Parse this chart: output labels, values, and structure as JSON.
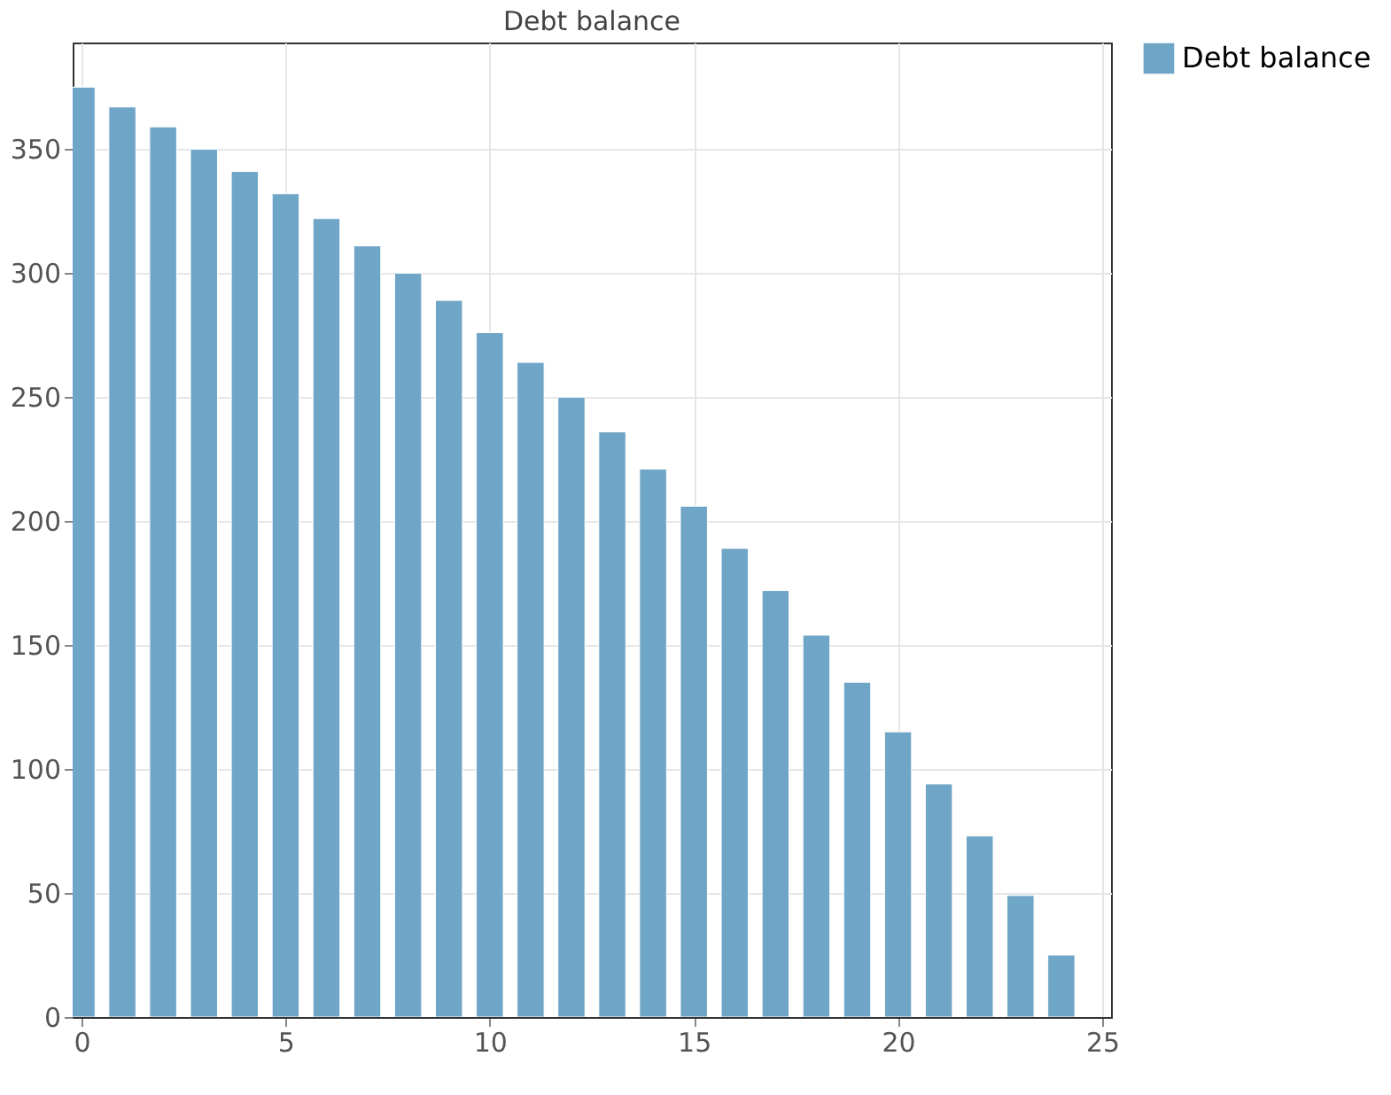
{
  "chart_data": {
    "type": "bar",
    "title": "Debt balance",
    "x": [
      0,
      1,
      2,
      3,
      4,
      5,
      6,
      7,
      8,
      9,
      10,
      11,
      12,
      13,
      14,
      15,
      16,
      17,
      18,
      19,
      20,
      21,
      22,
      23,
      24
    ],
    "series": [
      {
        "name": "Debt balance",
        "color": "#6fa5c7",
        "values": [
          375,
          367,
          359,
          350,
          341,
          332,
          322,
          311,
          300,
          289,
          276,
          264,
          250,
          236,
          221,
          206,
          189,
          172,
          154,
          135,
          115,
          94,
          73,
          49,
          25
        ]
      }
    ],
    "xlim": [
      0,
      25
    ],
    "xticks": [
      0,
      5,
      10,
      15,
      20,
      25
    ],
    "ylim": [
      0,
      393
    ],
    "yticks": [
      0,
      50,
      100,
      150,
      200,
      250,
      300,
      350
    ],
    "grid": true,
    "legend": "top right"
  }
}
